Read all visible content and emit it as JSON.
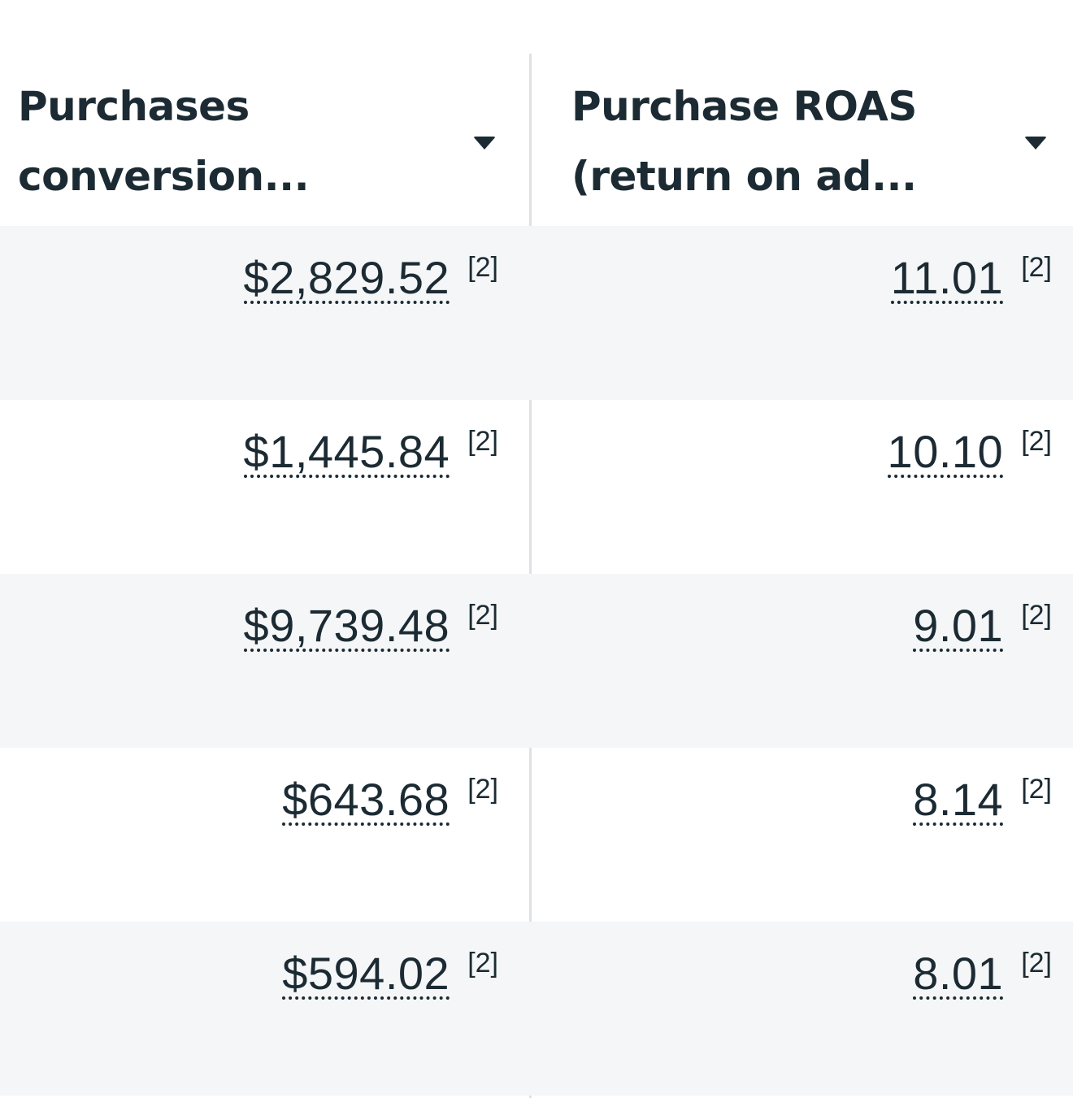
{
  "columns": [
    {
      "title_line1": "Purchases",
      "title_line2": "conversion...",
      "sort_icon": "caret-down-icon"
    },
    {
      "title_line1": "Purchase ROAS",
      "title_line2": "(return on ad...",
      "sort_icon": "caret-down-icon"
    }
  ],
  "rows": [
    {
      "conversion_value": "$2,829.52",
      "conversion_note": "[2]",
      "roas": "11.01",
      "roas_note": "[2]"
    },
    {
      "conversion_value": "$1,445.84",
      "conversion_note": "[2]",
      "roas": "10.10",
      "roas_note": "[2]"
    },
    {
      "conversion_value": "$9,739.48",
      "conversion_note": "[2]",
      "roas": "9.01",
      "roas_note": "[2]"
    },
    {
      "conversion_value": "$643.68",
      "conversion_note": "[2]",
      "roas": "8.14",
      "roas_note": "[2]"
    },
    {
      "conversion_value": "$594.02",
      "conversion_note": "[2]",
      "roas": "8.01",
      "roas_note": "[2]"
    }
  ],
  "colors": {
    "text": "#1c2b33",
    "row_shade": "#f5f6f7",
    "divider": "#dfe1e5",
    "background": "#ffffff"
  }
}
